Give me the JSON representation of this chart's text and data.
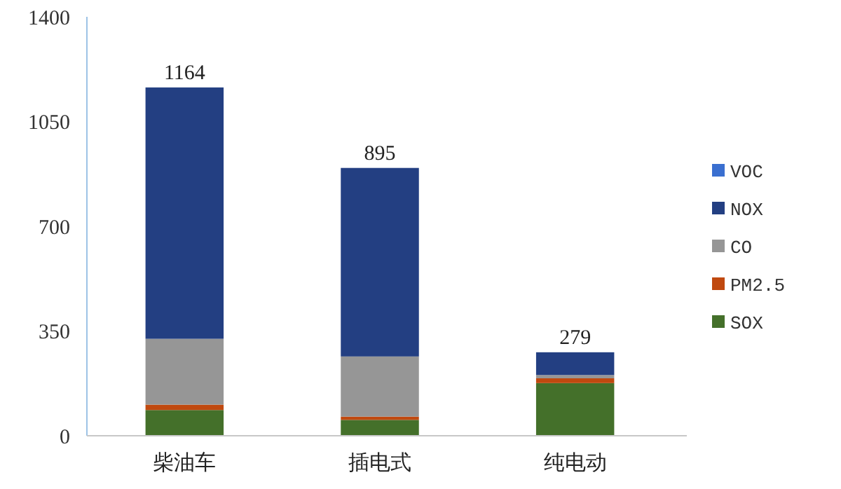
{
  "chart_data": {
    "type": "bar",
    "stacked": true,
    "categories": [
      "柴油车",
      "插电式",
      "纯电动"
    ],
    "series": [
      {
        "name": "SOX",
        "color": "#44702a",
        "values": [
          86,
          53,
          176
        ]
      },
      {
        "name": "PM2.5",
        "color": "#c0490f",
        "values": [
          18,
          11,
          16
        ]
      },
      {
        "name": "CO",
        "color": "#969696",
        "values": [
          220,
          201,
          11
        ]
      },
      {
        "name": "NOX",
        "color": "#233f82",
        "values": [
          840,
          630,
          76
        ]
      },
      {
        "name": "VOC",
        "color": "#3a6fd0",
        "values": [
          0,
          0,
          0
        ]
      }
    ],
    "totals": [
      "1164",
      "895",
      "279"
    ],
    "ylim": [
      0,
      1400
    ],
    "yticks": [
      0,
      350,
      700,
      1050,
      1400
    ],
    "grid": false,
    "legend": "right"
  }
}
